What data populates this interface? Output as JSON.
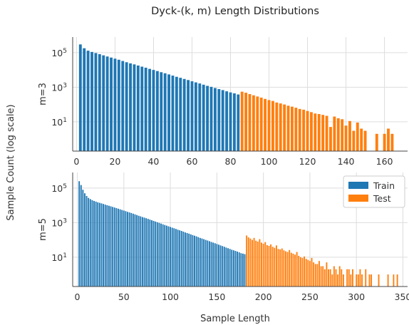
{
  "chart_data": {
    "title": "Dyck-(k, m) Length Distributions",
    "ylabel": "Sample Count (log scale)",
    "xlabel": "Sample Length",
    "type": "bar",
    "yscale": "log",
    "grid": true,
    "legend_position": "top-right",
    "colors": {
      "train": "#1f77b4",
      "test": "#ff7f0e"
    },
    "legend": [
      {
        "name": "Train",
        "color": "#1f77b4"
      },
      {
        "name": "Test",
        "color": "#ff7f0e"
      }
    ],
    "panels": [
      {
        "row_label": "m=3",
        "xlim": [
          -2,
          172
        ],
        "xticks": [
          0,
          20,
          40,
          60,
          80,
          100,
          120,
          140,
          160
        ],
        "ylim": [
          0.2,
          800000
        ],
        "yticks": [
          {
            "value": 10,
            "label": "10^1"
          },
          {
            "value": 1000,
            "label": "10^3"
          },
          {
            "value": 100000,
            "label": "10^5"
          }
        ],
        "series": [
          {
            "name": "Train",
            "x": [
              2,
              4,
              6,
              8,
              10,
              12,
              14,
              16,
              18,
              20,
              22,
              24,
              26,
              28,
              30,
              32,
              34,
              36,
              38,
              40,
              42,
              44,
              46,
              48,
              50,
              52,
              54,
              56,
              58,
              60,
              62,
              64,
              66,
              68,
              70,
              72,
              74,
              76,
              78,
              80,
              82,
              84
            ],
            "y": [
              300000,
              180000,
              130000,
              110000,
              95000,
              82000,
              70000,
              60000,
              52000,
              45000,
              39000,
              33000,
              28000,
              24000,
              21000,
              18000,
              15500,
              13500,
              11500,
              10000,
              8600,
              7400,
              6400,
              5500,
              4700,
              4000,
              3500,
              3000,
              2600,
              2200,
              1900,
              1650,
              1400,
              1200,
              1050,
              900,
              780,
              680,
              580,
              500,
              440,
              380
            ]
          },
          {
            "name": "Test",
            "x": [
              86,
              88,
              90,
              92,
              94,
              96,
              98,
              100,
              102,
              104,
              106,
              108,
              110,
              112,
              114,
              116,
              118,
              120,
              122,
              124,
              126,
              128,
              130,
              132,
              134,
              136,
              138,
              140,
              142,
              144,
              146,
              148,
              150,
              152,
              154,
              156,
              158,
              160,
              162,
              164
            ],
            "y": [
              550,
              480,
              400,
              340,
              290,
              250,
              210,
              180,
              160,
              130,
              115,
              100,
              85,
              75,
              65,
              55,
              50,
              42,
              36,
              30,
              28,
              25,
              22,
              5,
              20,
              16,
              14,
              6,
              11,
              3,
              9,
              4,
              3,
              0,
              0,
              2,
              0,
              2,
              4,
              2
            ]
          }
        ]
      },
      {
        "row_label": "m=5",
        "xlim": [
          -5,
          355
        ],
        "xticks": [
          0,
          50,
          100,
          150,
          200,
          250,
          300,
          350
        ],
        "ylim": [
          0.2,
          800000
        ],
        "yticks": [
          {
            "value": 10,
            "label": "10^1"
          },
          {
            "value": 1000,
            "label": "10^3"
          },
          {
            "value": 100000,
            "label": "10^5"
          }
        ],
        "series": [
          {
            "name": "Train",
            "x": [
              2,
              4,
              6,
              8,
              10,
              12,
              14,
              16,
              18,
              20,
              22,
              24,
              26,
              28,
              30,
              32,
              34,
              36,
              38,
              40,
              42,
              44,
              46,
              48,
              50,
              52,
              54,
              56,
              58,
              60,
              62,
              64,
              66,
              68,
              70,
              72,
              74,
              76,
              78,
              80,
              82,
              84,
              86,
              88,
              90,
              92,
              94,
              96,
              98,
              100,
              102,
              104,
              106,
              108,
              110,
              112,
              114,
              116,
              118,
              120,
              122,
              124,
              126,
              128,
              130,
              132,
              134,
              136,
              138,
              140,
              142,
              144,
              146,
              148,
              150,
              152,
              154,
              156,
              158,
              160,
              162,
              164,
              166,
              168,
              170,
              172,
              174,
              176,
              178,
              180
            ],
            "y": [
              250000,
              150000,
              80000,
              50000,
              35000,
              27000,
              23000,
              20000,
              18000,
              16500,
              15000,
              14000,
              13000,
              12000,
              11000,
              10200,
              9500,
              8800,
              8100,
              7500,
              6900,
              6400,
              5900,
              5400,
              5000,
              4600,
              4200,
              3900,
              3600,
              3300,
              3000,
              2750,
              2500,
              2300,
              2100,
              1950,
              1800,
              1650,
              1500,
              1380,
              1260,
              1150,
              1050,
              960,
              880,
              800,
              730,
              670,
              610,
              560,
              510,
              470,
              430,
              390,
              360,
              330,
              300,
              270,
              250,
              230,
              210,
              190,
              175,
              160,
              145,
              130,
              120,
              110,
              100,
              92,
              84,
              76,
              70,
              64,
              58,
              53,
              48,
              44,
              40,
              36,
              33,
              30,
              27,
              25,
              23,
              21,
              19,
              17,
              16,
              15
            ]
          },
          {
            "name": "Test",
            "x": [
              182,
              184,
              186,
              188,
              190,
              192,
              194,
              196,
              198,
              200,
              202,
              204,
              206,
              208,
              210,
              212,
              214,
              216,
              218,
              220,
              222,
              224,
              226,
              228,
              230,
              232,
              234,
              236,
              238,
              240,
              242,
              244,
              246,
              248,
              250,
              252,
              254,
              256,
              258,
              260,
              262,
              264,
              266,
              268,
              270,
              272,
              274,
              276,
              278,
              280,
              282,
              284,
              286,
              288,
              290,
              292,
              294,
              296,
              298,
              300,
              302,
              304,
              306,
              308,
              310,
              312,
              314,
              316,
              318,
              320,
              322,
              324,
              326,
              328,
              330,
              332,
              334,
              336,
              338,
              340,
              342,
              344
            ],
            "y": [
              180,
              140,
              120,
              100,
              130,
              90,
              80,
              110,
              70,
              60,
              75,
              50,
              45,
              55,
              40,
              35,
              48,
              30,
              28,
              32,
              25,
              22,
              20,
              26,
              18,
              16,
              14,
              20,
              12,
              10,
              9,
              11,
              8,
              7,
              6,
              9,
              5,
              4,
              4,
              6,
              3,
              3,
              2,
              5,
              2,
              2,
              1,
              3,
              2,
              1,
              3,
              2,
              1,
              0,
              2,
              2,
              1,
              2,
              0,
              1,
              1,
              2,
              1,
              0,
              2,
              0,
              1,
              1,
              0,
              0,
              0,
              1,
              0,
              0,
              0,
              0,
              1,
              0,
              0,
              1,
              0,
              1
            ]
          }
        ]
      }
    ]
  }
}
